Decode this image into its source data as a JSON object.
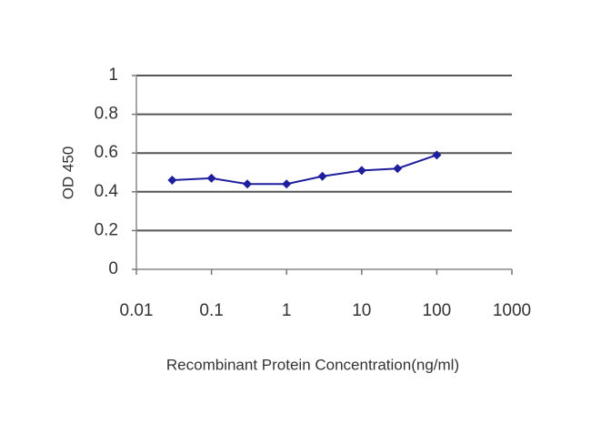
{
  "chart_data": {
    "type": "line",
    "x_label": "Recombinant Protein Concentration(ng/ml)",
    "y_label": "OD 450",
    "x": [
      0.03,
      0.1,
      0.3,
      1,
      3,
      10,
      30,
      100
    ],
    "series": [
      {
        "color": "#1f1f9e",
        "values": [
          0.46,
          0.47,
          0.44,
          0.44,
          0.48,
          0.51,
          0.52,
          0.59
        ]
      }
    ],
    "xscale": "log",
    "xlim": [
      0.01,
      1000
    ],
    "xticks": [
      0.01,
      0.1,
      1,
      10,
      100,
      1000
    ],
    "ylim": [
      0,
      1
    ],
    "yticks": [
      0,
      0.2,
      0.4,
      0.6,
      0.8,
      1
    ],
    "grid": true
  }
}
